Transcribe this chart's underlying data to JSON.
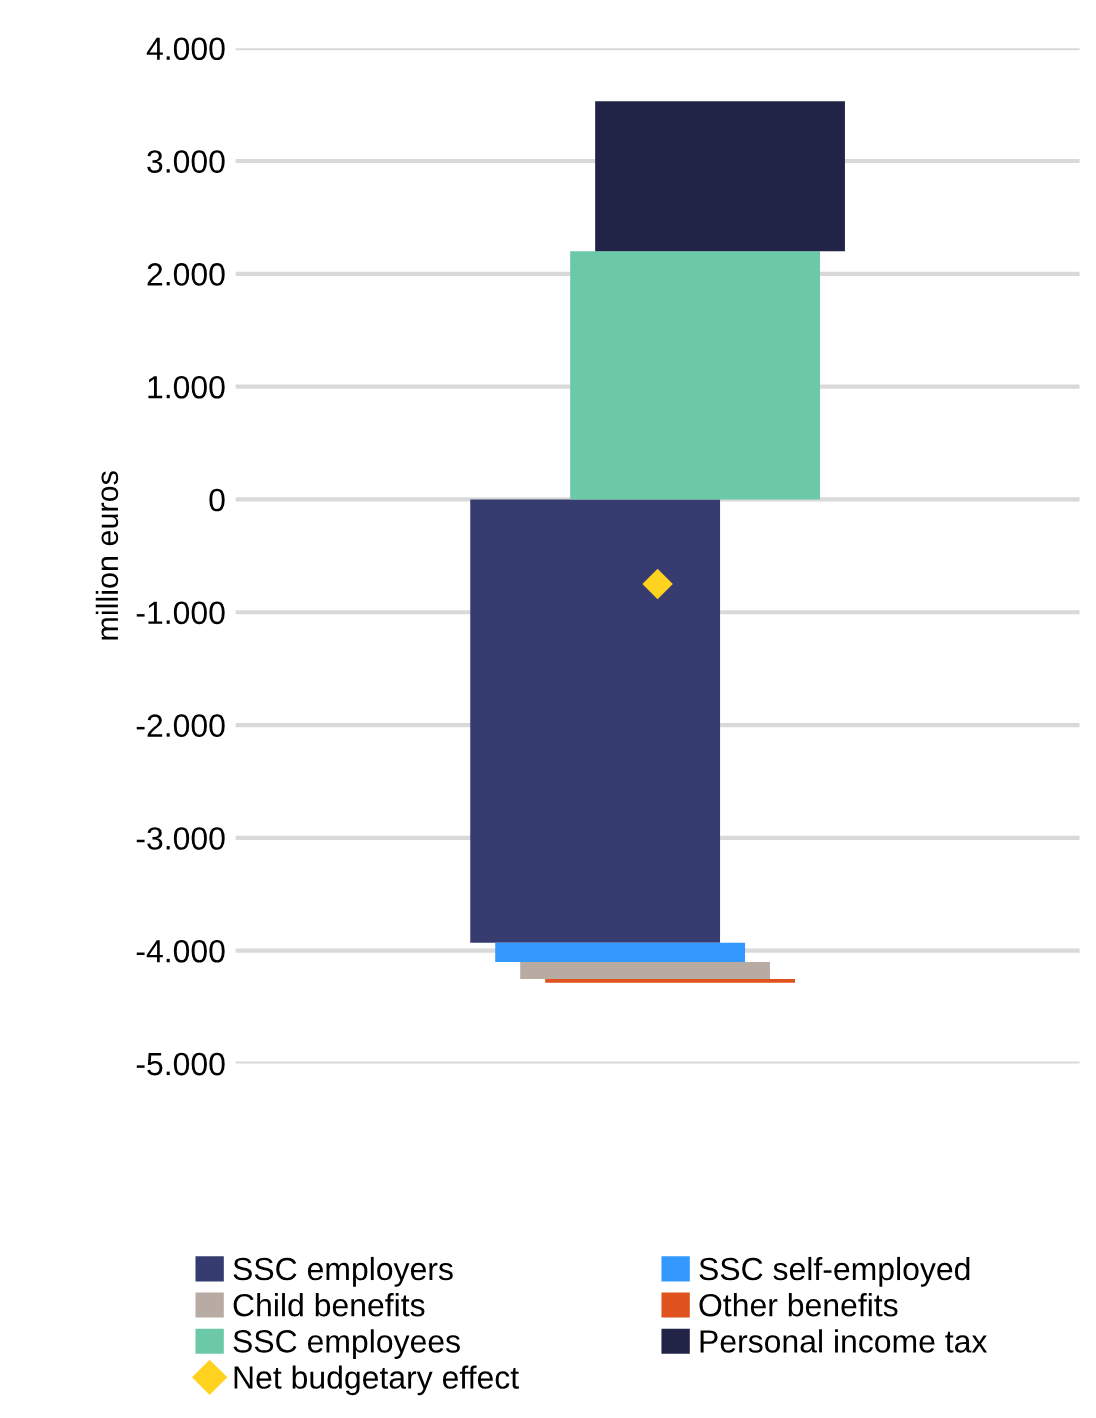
{
  "chart_data": {
    "type": "bar",
    "stacked": true,
    "categories": [
      null
    ],
    "ylabel": "million euros",
    "ylim": [
      -5000,
      4000
    ],
    "yticks": [
      {
        "value": -5000,
        "label": "-5.000"
      },
      {
        "value": -4000,
        "label": "-4.000"
      },
      {
        "value": -3000,
        "label": "-3.000"
      },
      {
        "value": -2000,
        "label": "-2.000"
      },
      {
        "value": -1000,
        "label": "-1.000"
      },
      0,
      {
        "value": 1000,
        "label": "1.000"
      },
      {
        "value": 2000,
        "label": "2.000"
      },
      {
        "value": 3000,
        "label": "3.000"
      },
      {
        "value": 4000,
        "label": "4.000"
      }
    ],
    "grid": "y",
    "legend": "bottom",
    "series": [
      {
        "name": "SSC employers",
        "color": "#363c70",
        "values": [
          -3930
        ],
        "base": [
          0
        ]
      },
      {
        "name": "SSC self-employed",
        "color": "#3399ff",
        "values": [
          -170
        ],
        "base": [
          -3930
        ]
      },
      {
        "name": "Child benefits",
        "color": "#b8aba4",
        "values": [
          -150
        ],
        "base": [
          -4100
        ]
      },
      {
        "name": "Other benefits",
        "color": "#e0521e",
        "values": [
          -35
        ],
        "base": [
          -4250
        ]
      },
      {
        "name": "SSC employees",
        "color": "#6cc9a8",
        "values": [
          2200
        ],
        "base": [
          0
        ]
      },
      {
        "name": "Personal income tax",
        "color": "#212446",
        "values": [
          1330
        ],
        "base": [
          2200
        ]
      },
      {
        "name": "Net budgetary effect",
        "color": "#ffd21f",
        "type": "scatter",
        "marker": "diamond",
        "values": [
          -750
        ]
      }
    ]
  }
}
